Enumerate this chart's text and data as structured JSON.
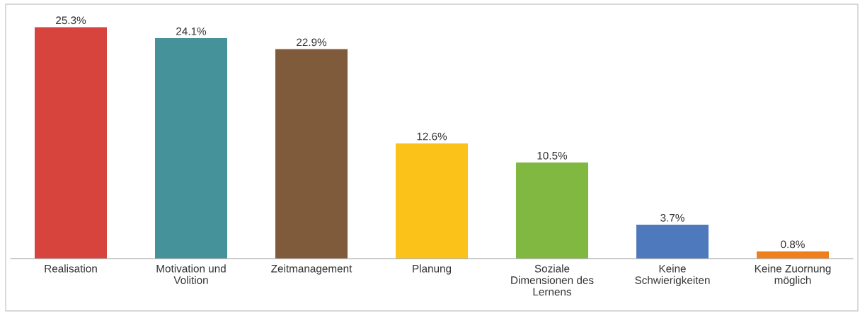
{
  "chart_data": {
    "type": "bar",
    "categories": [
      "Realisation",
      "Motivation und Volition",
      "Zeitmanagement",
      "Planung",
      "Soziale Dimensionen des Lernens",
      "Keine Schwierigkeiten",
      "Keine Zuornung möglich"
    ],
    "values": [
      25.3,
      24.1,
      22.9,
      12.6,
      10.5,
      3.7,
      0.8
    ],
    "colors": [
      "#d6443d",
      "#46929b",
      "#7f5a3b",
      "#fbc21a",
      "#80b842",
      "#4e7abd",
      "#ef7f1a"
    ],
    "value_labels": [
      "25.3%",
      "24.1%",
      "22.9%",
      "12.6%",
      "10.5%",
      "3.7%",
      "0.8%"
    ],
    "grid": false,
    "legend": false
  }
}
